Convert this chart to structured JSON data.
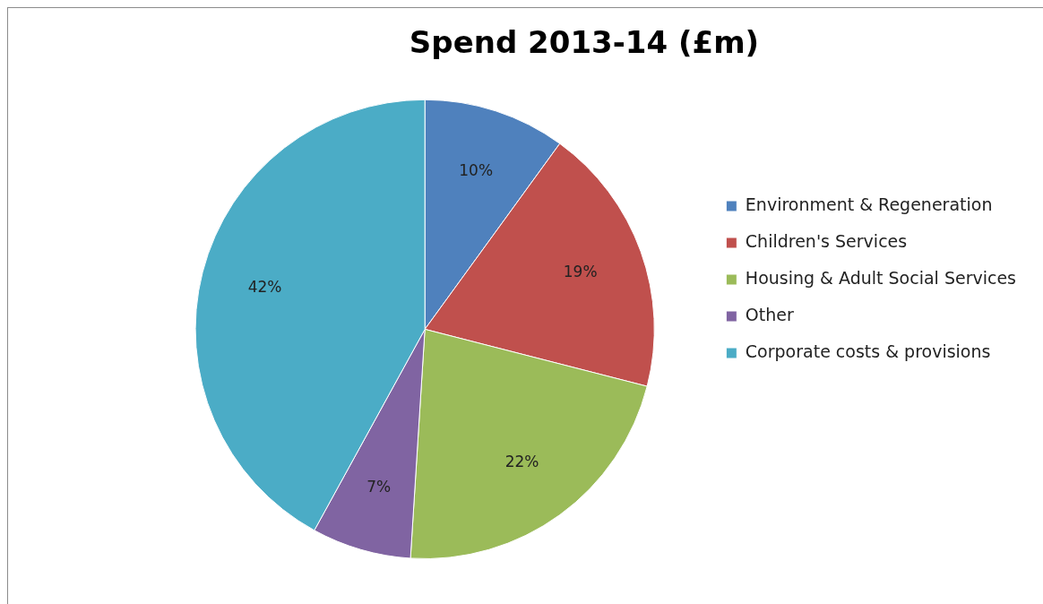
{
  "chart_data": {
    "type": "pie",
    "title": "Spend 2013-14 (£m)",
    "categories": [
      "Environment & Regeneration",
      "Children's Services",
      "Housing & Adult Social Services",
      "Other",
      "Corporate costs & provisions"
    ],
    "values": [
      10,
      19,
      22,
      7,
      42
    ],
    "colors": [
      "#4f81bd",
      "#c0504d",
      "#9bbb59",
      "#8064a2",
      "#4bacc6"
    ],
    "value_labels": [
      "10%",
      "19%",
      "22%",
      "7%",
      "42%"
    ],
    "legend": "right"
  }
}
